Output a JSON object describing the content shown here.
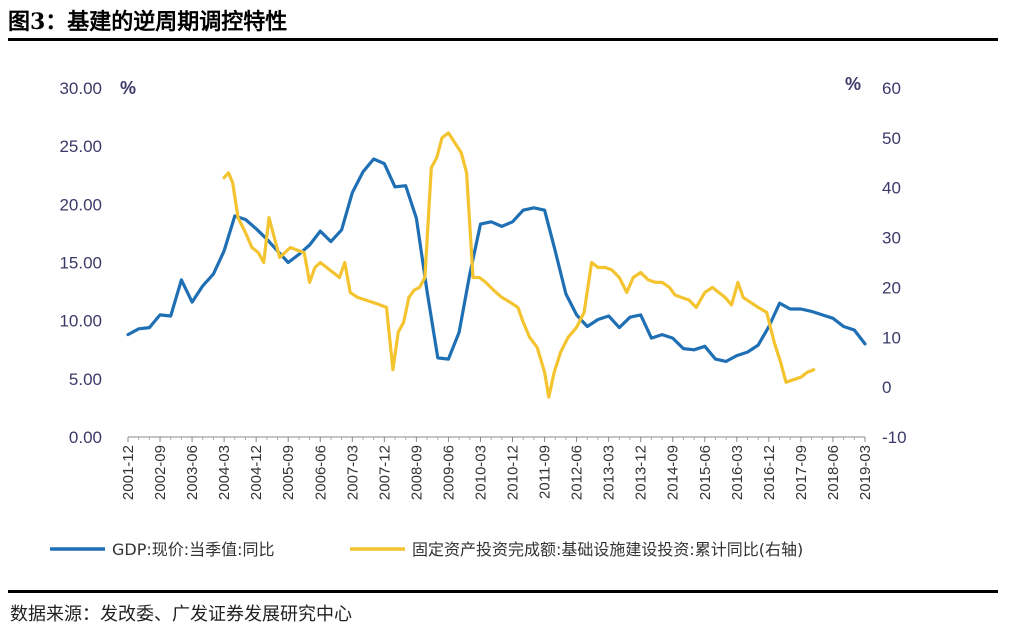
{
  "title": "图3：基建的逆周期调控特性",
  "source": "数据来源：发改委、广发证券发展研究中心",
  "chart_data": {
    "type": "line",
    "title": "图3：基建的逆周期调控特性",
    "left_axis": {
      "unit": "%",
      "ylim": [
        0,
        30
      ],
      "ticks": [
        "0.00",
        "5.00",
        "10.00",
        "15.00",
        "20.00",
        "25.00",
        "30.00"
      ]
    },
    "right_axis": {
      "unit": "%",
      "ylim": [
        -10,
        60
      ],
      "ticks": [
        "-10",
        "0",
        "10",
        "20",
        "30",
        "40",
        "50",
        "60"
      ]
    },
    "x_ticks": [
      "2001-12",
      "2002-09",
      "2003-06",
      "2004-03",
      "2004-12",
      "2005-09",
      "2006-06",
      "2007-03",
      "2007-12",
      "2008-09",
      "2009-06",
      "2010-03",
      "2010-12",
      "2011-09",
      "2012-06",
      "2013-03",
      "2013-12",
      "2014-09",
      "2015-06",
      "2016-03",
      "2016-12",
      "2017-09",
      "2018-06",
      "2019-03"
    ],
    "x_range": [
      0,
      69
    ],
    "series": [
      {
        "name": "GDP:现价:当季值:同比",
        "axis": "left",
        "color": "#1f6fb5",
        "points": [
          [
            0,
            8.8
          ],
          [
            1,
            9.3
          ],
          [
            2,
            9.4
          ],
          [
            3,
            10.5
          ],
          [
            4,
            10.4
          ],
          [
            5,
            13.5
          ],
          [
            6,
            11.6
          ],
          [
            7,
            13.0
          ],
          [
            8,
            14.0
          ],
          [
            9,
            16.0
          ],
          [
            10,
            19.0
          ],
          [
            11,
            18.7
          ],
          [
            12,
            17.9
          ],
          [
            13,
            17.0
          ],
          [
            14,
            16.0
          ],
          [
            15,
            15.0
          ],
          [
            16,
            15.7
          ],
          [
            17,
            16.5
          ],
          [
            18,
            17.7
          ],
          [
            19,
            16.8
          ],
          [
            20,
            17.8
          ],
          [
            21,
            21.0
          ],
          [
            22,
            22.8
          ],
          [
            23,
            23.9
          ],
          [
            24,
            23.5
          ],
          [
            25,
            21.5
          ],
          [
            26,
            21.6
          ],
          [
            27,
            18.8
          ],
          [
            28,
            12.5
          ],
          [
            29,
            6.8
          ],
          [
            30,
            6.7
          ],
          [
            31,
            9.0
          ],
          [
            32,
            14.0
          ],
          [
            33,
            18.3
          ],
          [
            34,
            18.5
          ],
          [
            35,
            18.1
          ],
          [
            36,
            18.5
          ],
          [
            37,
            19.5
          ],
          [
            38,
            19.7
          ],
          [
            39,
            19.5
          ],
          [
            40,
            16.0
          ],
          [
            41,
            12.3
          ],
          [
            42,
            10.5
          ],
          [
            43,
            9.5
          ],
          [
            44,
            10.1
          ],
          [
            45,
            10.4
          ],
          [
            46,
            9.4
          ],
          [
            47,
            10.3
          ],
          [
            48,
            10.5
          ],
          [
            49,
            8.5
          ],
          [
            50,
            8.8
          ],
          [
            51,
            8.5
          ],
          [
            52,
            7.6
          ],
          [
            53,
            7.5
          ],
          [
            54,
            7.8
          ],
          [
            55,
            6.7
          ],
          [
            56,
            6.5
          ],
          [
            57,
            7.0
          ],
          [
            58,
            7.3
          ],
          [
            59,
            7.9
          ],
          [
            60,
            9.5
          ],
          [
            61,
            11.5
          ],
          [
            62,
            11.0
          ],
          [
            63,
            11.0
          ],
          [
            64,
            10.8
          ],
          [
            65,
            10.5
          ],
          [
            66,
            10.2
          ],
          [
            67,
            9.5
          ],
          [
            68,
            9.2
          ],
          [
            69,
            8.0
          ]
        ]
      },
      {
        "name": "固定资产投资完成额:基础设施建设投资:累计同比(右轴)",
        "axis": "right",
        "color": "#f4c430",
        "points": [
          [
            9,
            42
          ],
          [
            9.4,
            43
          ],
          [
            9.8,
            41
          ],
          [
            10.3,
            34
          ],
          [
            11,
            31
          ],
          [
            11.6,
            28
          ],
          [
            12.2,
            27
          ],
          [
            12.7,
            25
          ],
          [
            13.2,
            34
          ],
          [
            13.7,
            30
          ],
          [
            14.2,
            26
          ],
          [
            14.7,
            27
          ],
          [
            15.2,
            28
          ],
          [
            15.8,
            27.5
          ],
          [
            16.5,
            27
          ],
          [
            17,
            21
          ],
          [
            17.5,
            24
          ],
          [
            18,
            25
          ],
          [
            18.6,
            24
          ],
          [
            19.2,
            23
          ],
          [
            19.8,
            22
          ],
          [
            20.3,
            25
          ],
          [
            20.8,
            19
          ],
          [
            21.5,
            18
          ],
          [
            22.2,
            17.5
          ],
          [
            23.2,
            16.8
          ],
          [
            24.2,
            16
          ],
          [
            24.8,
            3.5
          ],
          [
            25.3,
            11
          ],
          [
            25.8,
            13
          ],
          [
            26.3,
            18
          ],
          [
            26.8,
            19.5
          ],
          [
            27.3,
            20
          ],
          [
            27.8,
            22
          ],
          [
            28.4,
            44
          ],
          [
            28.9,
            46
          ],
          [
            29.4,
            50
          ],
          [
            30,
            51
          ],
          [
            30.6,
            49
          ],
          [
            31.2,
            47
          ],
          [
            31.7,
            43
          ],
          [
            32.3,
            22
          ],
          [
            32.9,
            22
          ],
          [
            33.5,
            21
          ],
          [
            34.2,
            19.5
          ],
          [
            35,
            18
          ],
          [
            35.8,
            17
          ],
          [
            36.5,
            16
          ],
          [
            37,
            13
          ],
          [
            37.6,
            10
          ],
          [
            38.3,
            8
          ],
          [
            39,
            3
          ],
          [
            39.4,
            -2
          ],
          [
            39.9,
            3
          ],
          [
            40.5,
            7
          ],
          [
            41.2,
            10
          ],
          [
            42,
            12
          ],
          [
            42.7,
            15
          ],
          [
            43.4,
            25
          ],
          [
            44,
            24
          ],
          [
            44.7,
            24
          ],
          [
            45.3,
            23.5
          ],
          [
            46,
            22
          ],
          [
            46.7,
            19
          ],
          [
            47.3,
            22
          ],
          [
            48,
            23
          ],
          [
            48.7,
            21.5
          ],
          [
            49.4,
            21
          ],
          [
            50,
            21
          ],
          [
            50.7,
            20
          ],
          [
            51.2,
            18.5
          ],
          [
            51.8,
            18
          ],
          [
            52.5,
            17.5
          ],
          [
            53.2,
            16
          ],
          [
            54,
            19
          ],
          [
            54.7,
            20
          ],
          [
            55.3,
            19
          ],
          [
            55.9,
            18
          ],
          [
            56.5,
            16.5
          ],
          [
            57.1,
            21
          ],
          [
            57.6,
            18
          ],
          [
            58.3,
            17
          ],
          [
            59,
            16
          ],
          [
            59.8,
            15
          ],
          [
            60.5,
            9
          ],
          [
            61.1,
            5
          ],
          [
            61.6,
            1
          ],
          [
            62.3,
            1.5
          ],
          [
            63,
            2
          ],
          [
            63.6,
            3
          ],
          [
            64.2,
            3.5
          ]
        ]
      }
    ],
    "legend": [
      "GDP:现价:当季值:同比",
      "固定资产投资完成额:基础设施建设投资:累计同比(右轴)"
    ]
  }
}
